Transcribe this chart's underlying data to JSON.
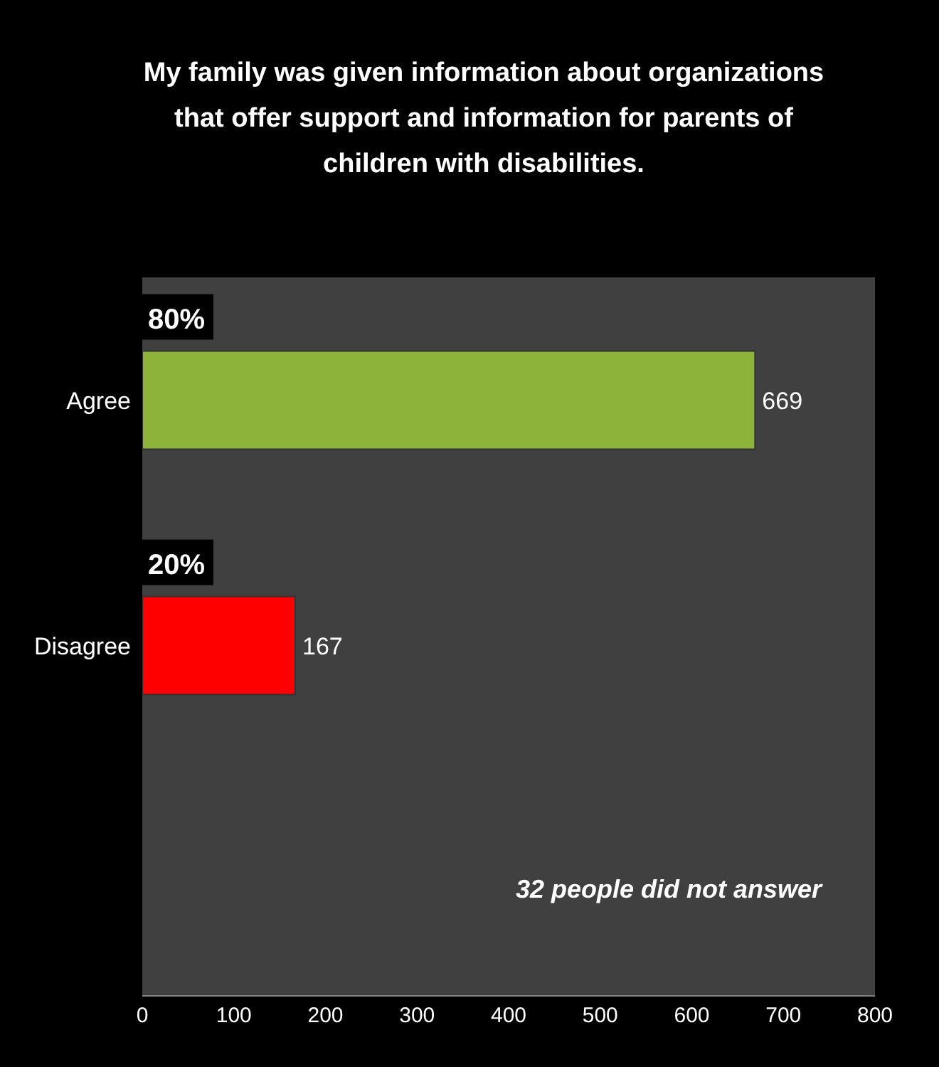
{
  "chart_data": {
    "type": "bar",
    "orientation": "horizontal",
    "title": "My family was given information about organizations that offer support and information for parents of children with disabilities.",
    "categories": [
      "Agree",
      "Disagree"
    ],
    "values": [
      669,
      167
    ],
    "colors": [
      "#8db33a",
      "#ff0000"
    ],
    "data_labels": true,
    "xlim": [
      0,
      800
    ],
    "xticks": [
      0,
      100,
      200,
      300,
      400,
      500,
      600,
      700,
      800
    ],
    "grid": false,
    "annotations": [
      "80%",
      "20%",
      "32 people did not answer"
    ]
  }
}
